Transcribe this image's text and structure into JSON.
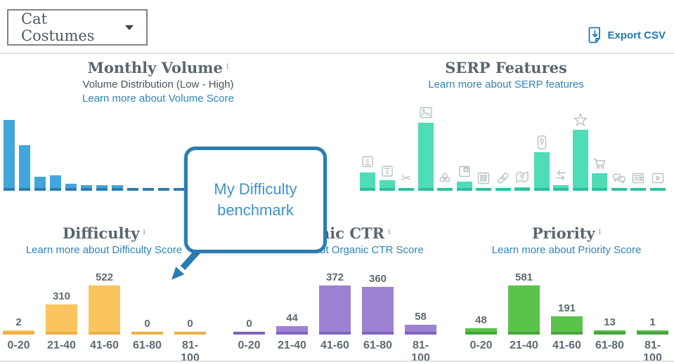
{
  "icons": {
    "info_glyph": "i"
  },
  "header": {
    "keyword_dropdown": {
      "label": "Cat Costumes"
    },
    "export_csv": {
      "label": "Export CSV"
    }
  },
  "tooltip": {
    "text": "My Difficulty benchmark"
  },
  "colors": {
    "volume_bar": "#41a6dc",
    "volume_axis": "#2e7cab",
    "serp_bar": "#4eddb6",
    "serp_axis": "#2cbfa0",
    "difficulty_bar": "#fac55e",
    "difficulty_axis": "#edb045",
    "organic_ctr_bar": "#9d82d3",
    "organic_ctr_axis": "#7e63bd",
    "priority_bar": "#5bc24b",
    "priority_axis": "#46a53a",
    "link_blue": "#2d84bb",
    "callout_blue": "#2b7cb3",
    "icon_gray": "#b8c0c6"
  },
  "chart_data": [
    {
      "id": "monthly_volume",
      "type": "bar",
      "title": "Monthly Volume",
      "subtitle": "Volume Distribution (Low - High)",
      "link": "Learn more about Volume Score",
      "has_info_icon": true,
      "relative_heights": [
        97,
        61,
        16,
        18,
        6,
        4,
        4,
        4,
        0,
        0,
        0,
        0
      ],
      "bar_color": "#41a6dc",
      "axis_color": "#2e7cab"
    },
    {
      "id": "serp_features",
      "type": "bar",
      "title": "SERP Features",
      "link": "Learn more about SERP features",
      "has_info_icon": false,
      "features": [
        {
          "icon": "ads-top-icon",
          "relative_height": 22
        },
        {
          "icon": "ads-bottom-icon",
          "relative_height": 11
        },
        {
          "icon": "scissors-icon",
          "relative_height": 0
        },
        {
          "icon": "image-pack-icon",
          "relative_height": 93
        },
        {
          "icon": "knowledge-graph-icon",
          "relative_height": 0
        },
        {
          "icon": "featured-snippet-icon",
          "relative_height": 9
        },
        {
          "icon": "sitelinks-icon",
          "relative_height": 0
        },
        {
          "icon": "link-icon",
          "relative_height": 0
        },
        {
          "icon": "map-icon",
          "relative_height": 1
        },
        {
          "icon": "local-pack-icon",
          "relative_height": 51
        },
        {
          "icon": "swap-arrows-icon",
          "relative_height": 4
        },
        {
          "icon": "reviews-star-icon",
          "relative_height": 83
        },
        {
          "icon": "shopping-cart-icon",
          "relative_height": 21
        },
        {
          "icon": "chat-bubbles-icon",
          "relative_height": 0
        },
        {
          "icon": "news-icon",
          "relative_height": 0
        },
        {
          "icon": "video-icon",
          "relative_height": 0
        }
      ],
      "bar_color": "#4eddb6",
      "axis_color": "#2cbfa0"
    },
    {
      "id": "difficulty",
      "type": "bar",
      "title": "Difficulty",
      "link": "Learn more about Difficulty Score",
      "has_info_icon": true,
      "categories": [
        "0-20",
        "21-40",
        "41-60",
        "61-80",
        "81-100"
      ],
      "values": [
        2,
        310,
        522,
        0,
        0
      ],
      "bar_color": "#fac55e",
      "axis_color": "#edb045"
    },
    {
      "id": "organic_ctr",
      "type": "bar",
      "title": "Organic CTR",
      "link": "Learn more about Organic CTR Score",
      "has_info_icon": true,
      "categories": [
        "0-20",
        "21-40",
        "41-60",
        "61-80",
        "81-100"
      ],
      "values": [
        0,
        44,
        372,
        360,
        58
      ],
      "bar_color": "#9d82d3",
      "axis_color": "#7e63bd"
    },
    {
      "id": "priority",
      "type": "bar",
      "title": "Priority",
      "link": "Learn more about Priority Score",
      "has_info_icon": true,
      "categories": [
        "0-20",
        "21-40",
        "41-60",
        "61-80",
        "81-100"
      ],
      "values": [
        48,
        581,
        191,
        13,
        1
      ],
      "bar_color": "#5bc24b",
      "axis_color": "#46a53a"
    }
  ]
}
